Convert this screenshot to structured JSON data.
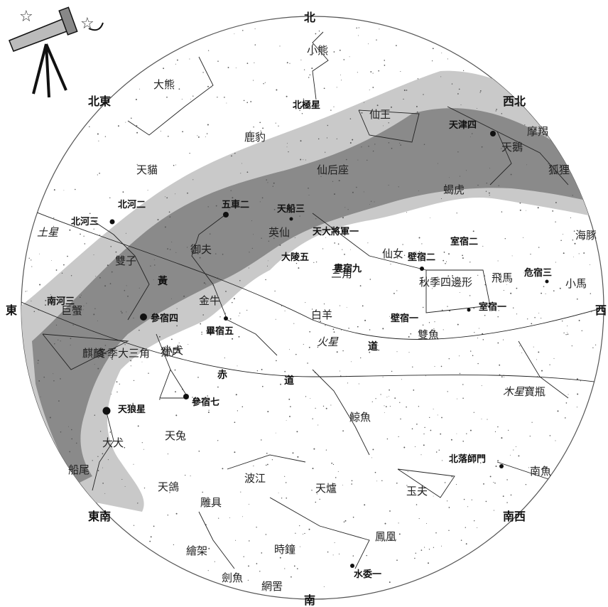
{
  "directions": {
    "north": "北",
    "south": "南",
    "east": "東",
    "west": "西",
    "northeast": "北東",
    "northwest": "西北",
    "southeast": "東南",
    "southwest": "南西"
  },
  "orbit_labels": {
    "ecliptic_1": "黃",
    "ecliptic_2": "道",
    "equator_1": "赤",
    "equator_2": "道"
  },
  "planets": {
    "saturn": "土星",
    "mars": "火星",
    "jupiter": "木星"
  },
  "constellations": {
    "ursa_minor": "小熊",
    "ursa_major": "大熊",
    "cepheus": "仙王",
    "camelopardalis": "鹿豹",
    "lynx": "天貓",
    "cassiopeia": "仙后座",
    "cygnus": "天鵝",
    "lacerta": "蝎虎",
    "vulpecula": "狐狸",
    "delphinus": "海豚",
    "auriga": "御夫",
    "perseus": "英仙",
    "gemini": "雙子",
    "cancer": "巨蟹",
    "triangulum": "三角",
    "andromeda": "仙女",
    "pegasus": "飛馬",
    "equuleus": "小馬",
    "taurus": "金牛",
    "aries": "白羊",
    "pisces": "雙魚",
    "canis_minor": "小犬",
    "winter_triangle": "冬季大三角",
    "orion": "獵戶",
    "autumn_square": "秋季四邊形",
    "monoceros": "麒麟",
    "canis_major": "大犬",
    "lepus": "天兔",
    "cetus": "鯨魚",
    "aquarius": "寶瓶",
    "puppis": "船尾",
    "columba": "天鴿",
    "eridanus": "波江",
    "fornax": "天爐",
    "grus": "天鶴",
    "piscis_austrinus": "南魚",
    "sculptor": "玉夫",
    "phoenix": "鳳凰",
    "caelum": "雕具",
    "horologium": "時鐘",
    "pictor": "繪架",
    "dorado": "劍魚",
    "reticulum": "網罟",
    "capricornus": "摩羯"
  },
  "bright_stars": {
    "polaris": "北極星",
    "deneb": "天津四",
    "capella": "五車二",
    "algol": "天船三",
    "almach": "天大將軍一",
    "mirfak": "大陵五",
    "alpheratz": "壁宿二",
    "scheat": "室宿二",
    "hamal": "婁宿九",
    "markab": "室宿一",
    "algenib": "壁宿一",
    "enif": "危宿三",
    "castor": "北河二",
    "pollux": "北河三",
    "procyon": "南河三",
    "betelgeuse": "參宿四",
    "aldebaran": "畢宿五",
    "rigel": "參宿七",
    "sirius": "天狼星",
    "fomalhaut": "北落師門",
    "achernar": "水委一"
  }
}
